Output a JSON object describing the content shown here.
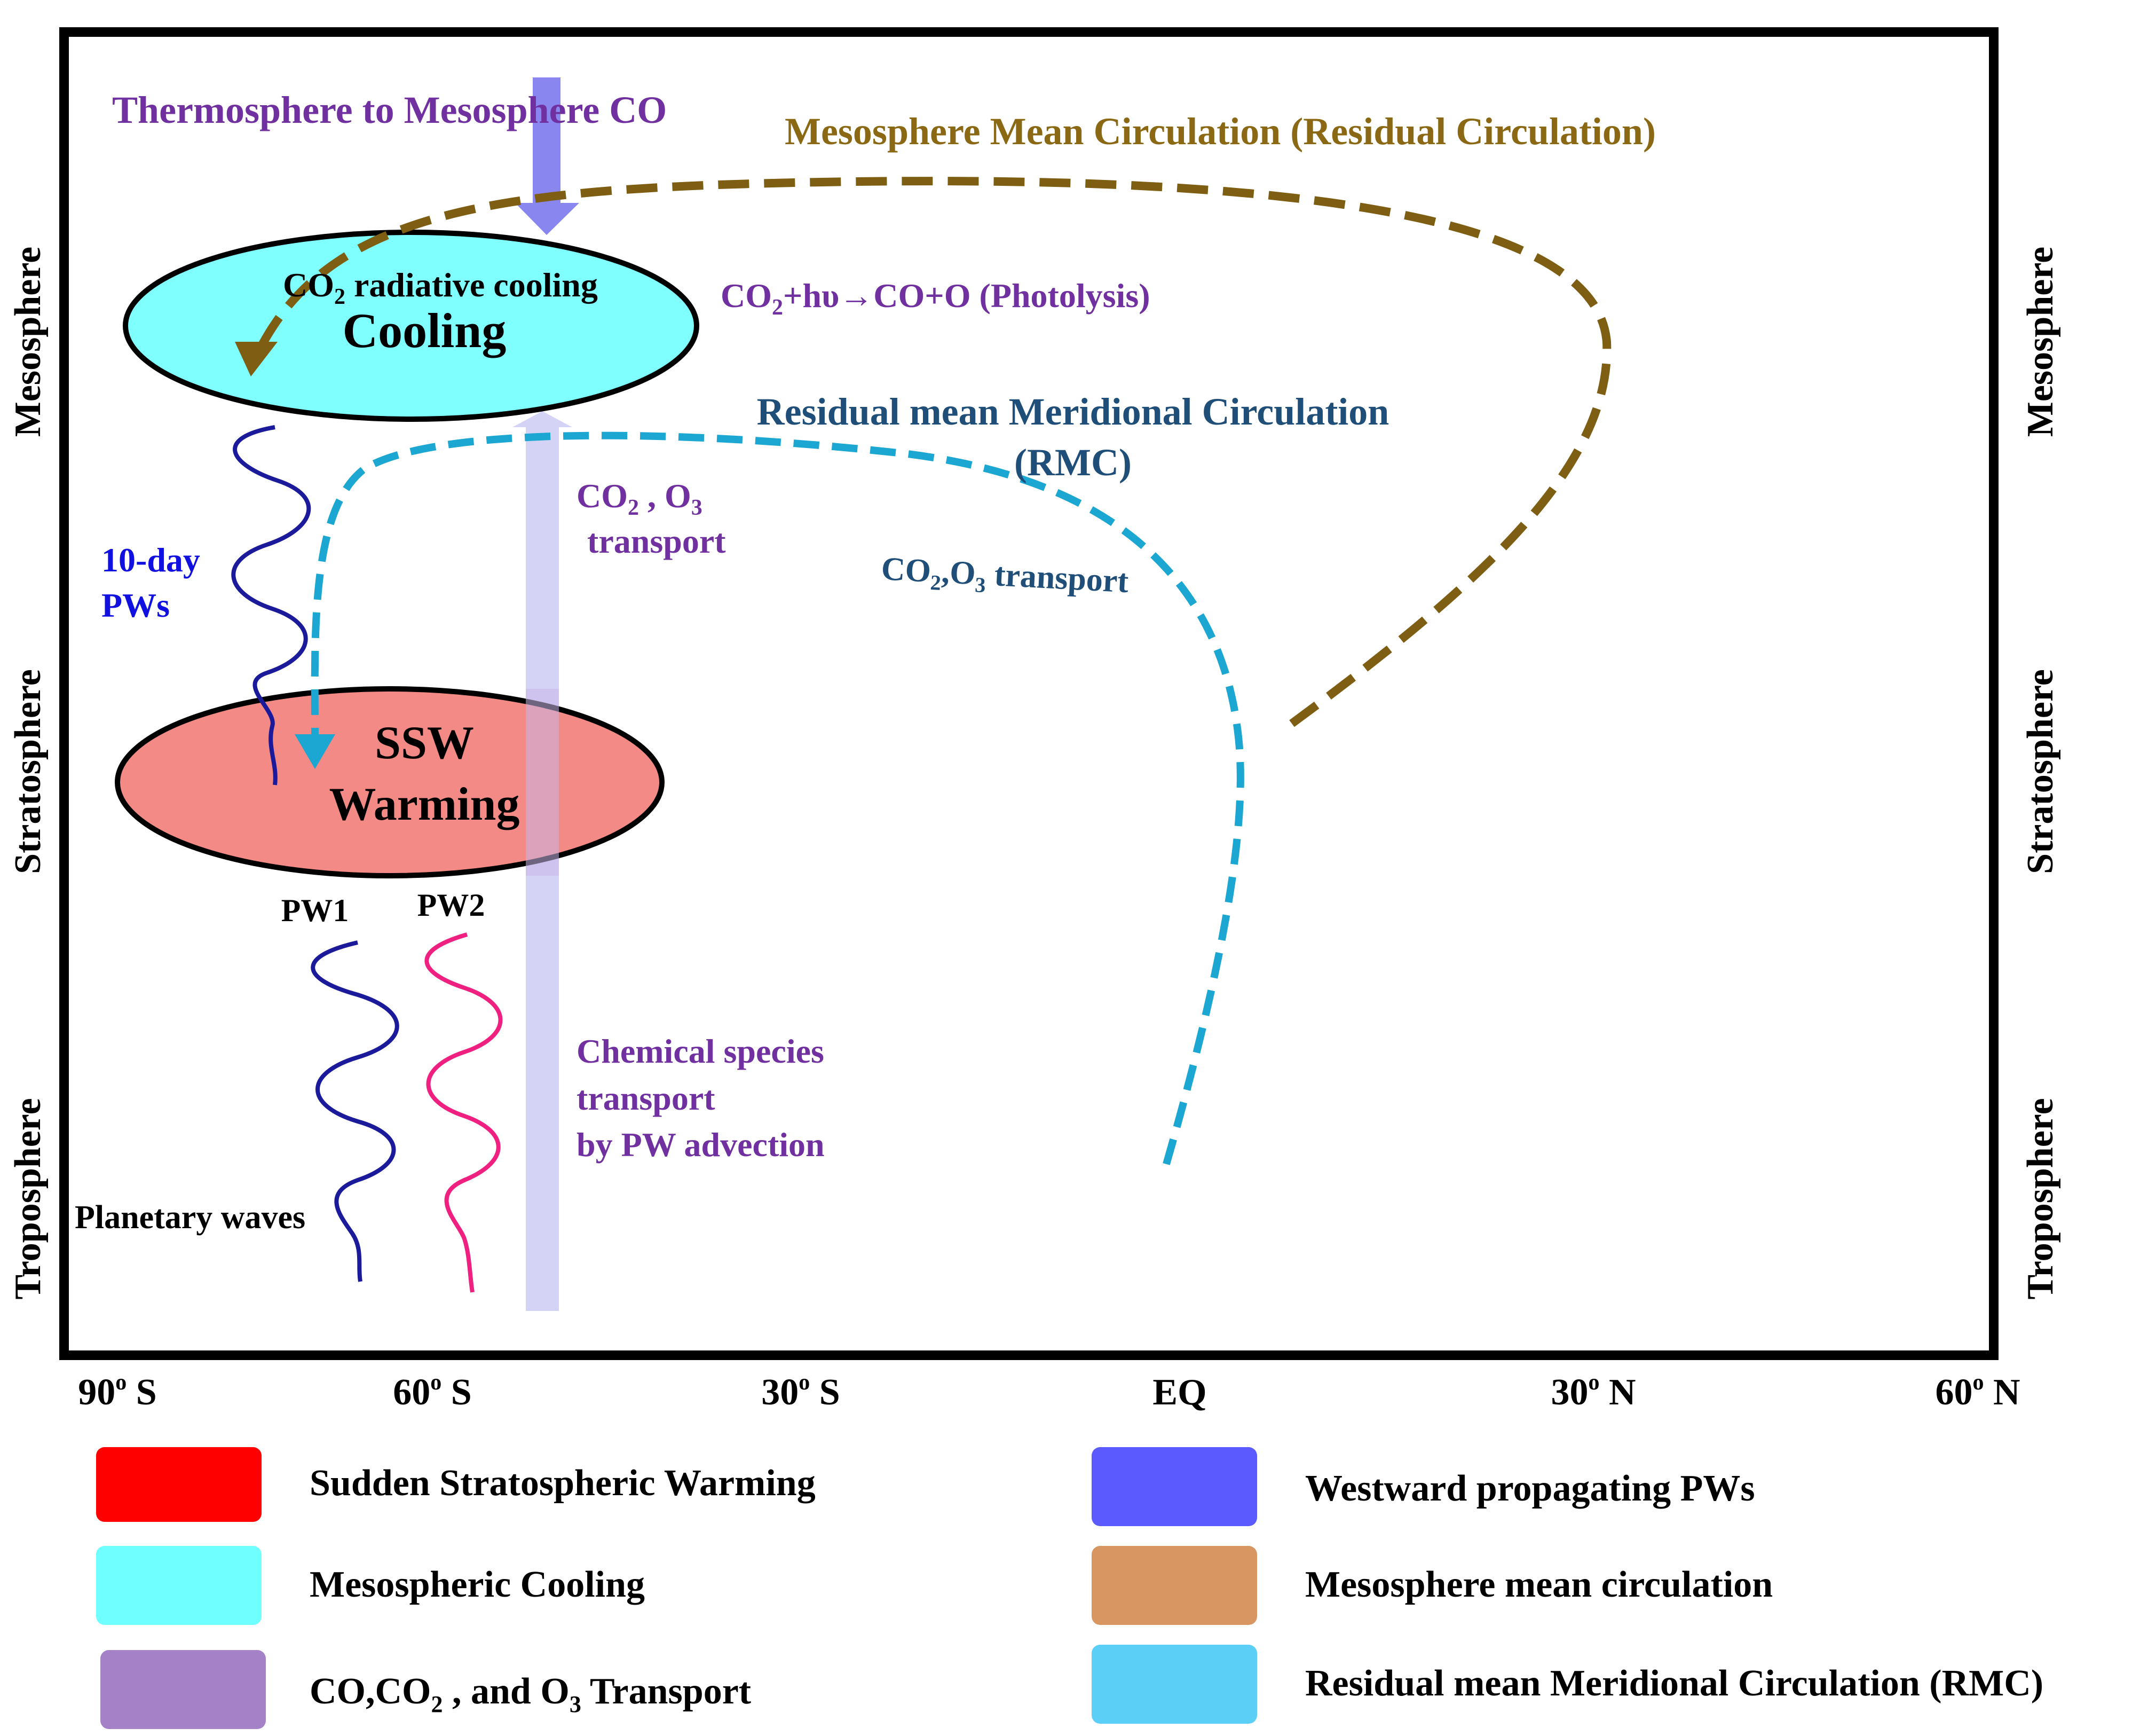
{
  "colors": {
    "frame": "#000000",
    "cooling_fill": "#80FFFF",
    "warming_fill": "#F48A86",
    "mmc_arrow": "#7D5E12",
    "rmc_arrow": "#1BA7D2",
    "down_arrow": "#8A86F0",
    "up_bar": "#D4D3F6",
    "purple_text": "#7030A0",
    "mmc_text": "#8B6914",
    "rmc_text": "#1F4E79",
    "blue_text": "#1010E0",
    "wave_navy": "#1A1A9A",
    "wave_pink": "#F02080",
    "legend_red": "#FF0000",
    "legend_cyan": "#70FFFF",
    "legend_purple": "#A582C8",
    "legend_blue": "#5A5AFF",
    "legend_brown": "#D89662",
    "legend_skyblue": "#5BCFF5"
  },
  "left_axis": {
    "top": "Mesosphere",
    "middle": "Stratosphere",
    "bottom": "Troposphere"
  },
  "right_axis": {
    "top": "Mesosphere",
    "middle": "Stratosphere",
    "bottom": "Troposphere"
  },
  "x_ticks": [
    {
      "deg": "90",
      "sup": "o",
      "dir": " S"
    },
    {
      "deg": "60",
      "sup": "o",
      "dir": " S"
    },
    {
      "deg": "30",
      "sup": "o",
      "dir": " S"
    },
    {
      "deg": "EQ",
      "sup": "",
      "dir": ""
    },
    {
      "deg": "30",
      "sup": "o",
      "dir": " N"
    },
    {
      "deg": "60",
      "sup": "o",
      "dir": " N"
    }
  ],
  "labels": {
    "thermo_to_meso": "Thermosphere to Mesosphere CO",
    "mmc_title": "Mesosphere Mean Circulation (Residual Circulation)",
    "co2_cooling_a": "CO",
    "co2_cooling_sub": "2",
    "co2_cooling_b": " radiative cooling",
    "cooling": "Cooling",
    "photolysis_a": "CO",
    "photolysis_sub": "2",
    "photolysis_b": "+hυ→CO+O (Photolysis)",
    "rmc_title_1": "Residual mean Meridional Circulation",
    "rmc_title_2": "(RMC)",
    "co2o3_a": "CO",
    "co2o3_sub1": "2",
    "co2o3_b": " , O",
    "co2o3_sub2": "3",
    "co2o3_transport": "transport",
    "rmc_transport_a": "CO",
    "rmc_transport_sub1": "2",
    "rmc_transport_b": ",O",
    "rmc_transport_sub2": "3",
    "rmc_transport_c": " transport",
    "tenday_1": "10-day",
    "tenday_2": "PWs",
    "ssw": "SSW",
    "warming": "Warming",
    "pw1": "PW1",
    "pw2": "PW2",
    "chem_1": "Chemical species",
    "chem_2": "transport",
    "chem_3": "by PW advection",
    "planetary_waves": "Planetary waves"
  },
  "legend": {
    "ssw": "Sudden Stratospheric  Warming",
    "meso_cooling": "Mesospheric Cooling",
    "transport_a": "CO,CO",
    "transport_sub1": "2",
    "transport_b": " , and O",
    "transport_sub2": "3",
    "transport_c": "  Transport",
    "westward": "Westward propagating PWs",
    "mmc": "Mesosphere mean circulation",
    "rmc": "Residual mean Meridional Circulation (RMC)"
  }
}
